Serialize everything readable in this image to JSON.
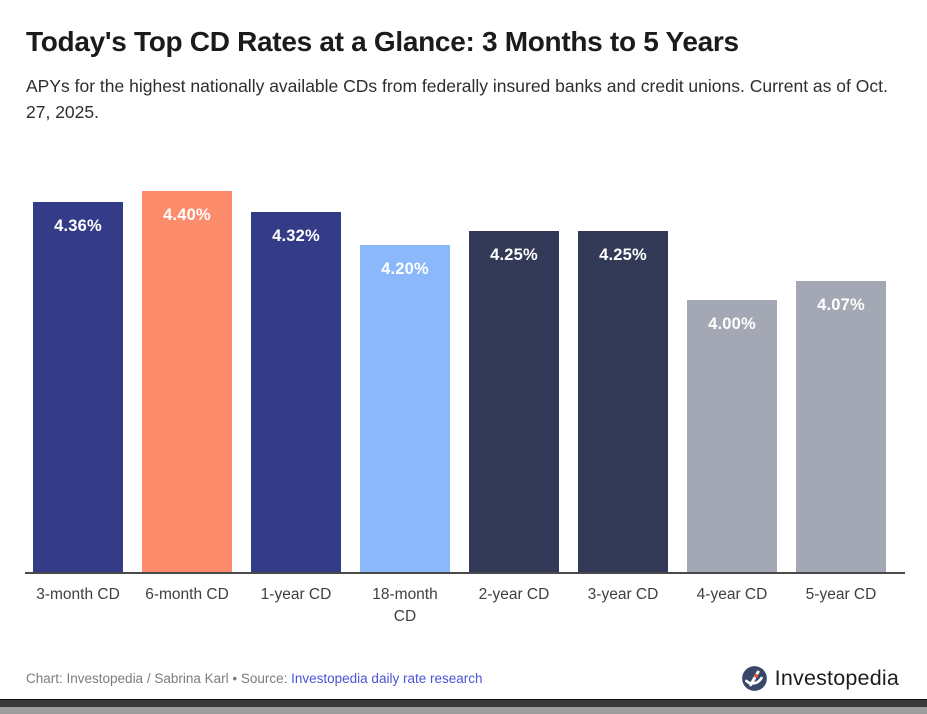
{
  "header": {
    "title": "Today's Top CD Rates at a Glance: 3 Months to 5 Years",
    "subtitle": "APYs for the highest nationally available CDs from federally insured banks and credit unions. Current as of Oct. 27, 2025."
  },
  "chart_data": {
    "type": "bar",
    "title": "Today's Top CD Rates at a Glance: 3 Months to 5 Years",
    "xlabel": "",
    "ylabel": "",
    "categories": [
      "3-month CD",
      "6-month CD",
      "1-year CD",
      "18-month\nCD",
      "2-year CD",
      "3-year CD",
      "4-year CD",
      "5-year CD"
    ],
    "values": [
      4.36,
      4.4,
      4.32,
      4.2,
      4.25,
      4.25,
      4.0,
      4.07
    ],
    "value_labels": [
      "4.36%",
      "4.40%",
      "4.32%",
      "4.20%",
      "4.25%",
      "4.25%",
      "4.00%",
      "4.07%"
    ],
    "bar_colors": [
      "#353c87",
      "#fd8c6c",
      "#353c87",
      "#8ab8fb",
      "#323a57",
      "#323a57",
      "#a4a8b4",
      "#a4a8b4"
    ],
    "ylim": [
      3.0,
      4.45
    ],
    "grid": false,
    "legend": "none",
    "value_label_position": "inside-top",
    "value_label_color": "#ffffff"
  },
  "footer": {
    "credit_prefix": "Chart: Investopedia / Sabrina Karl • Source: ",
    "source_link": "Investopedia daily rate research",
    "logo_text": "Investopedia"
  },
  "colors": {
    "axis_line": "#4a4a4a",
    "link": "#4a53d6",
    "credit_text": "#7c7c7c",
    "logo_circle": "#36476a",
    "logo_dot": "#e8542d",
    "background": "#ffffff"
  }
}
